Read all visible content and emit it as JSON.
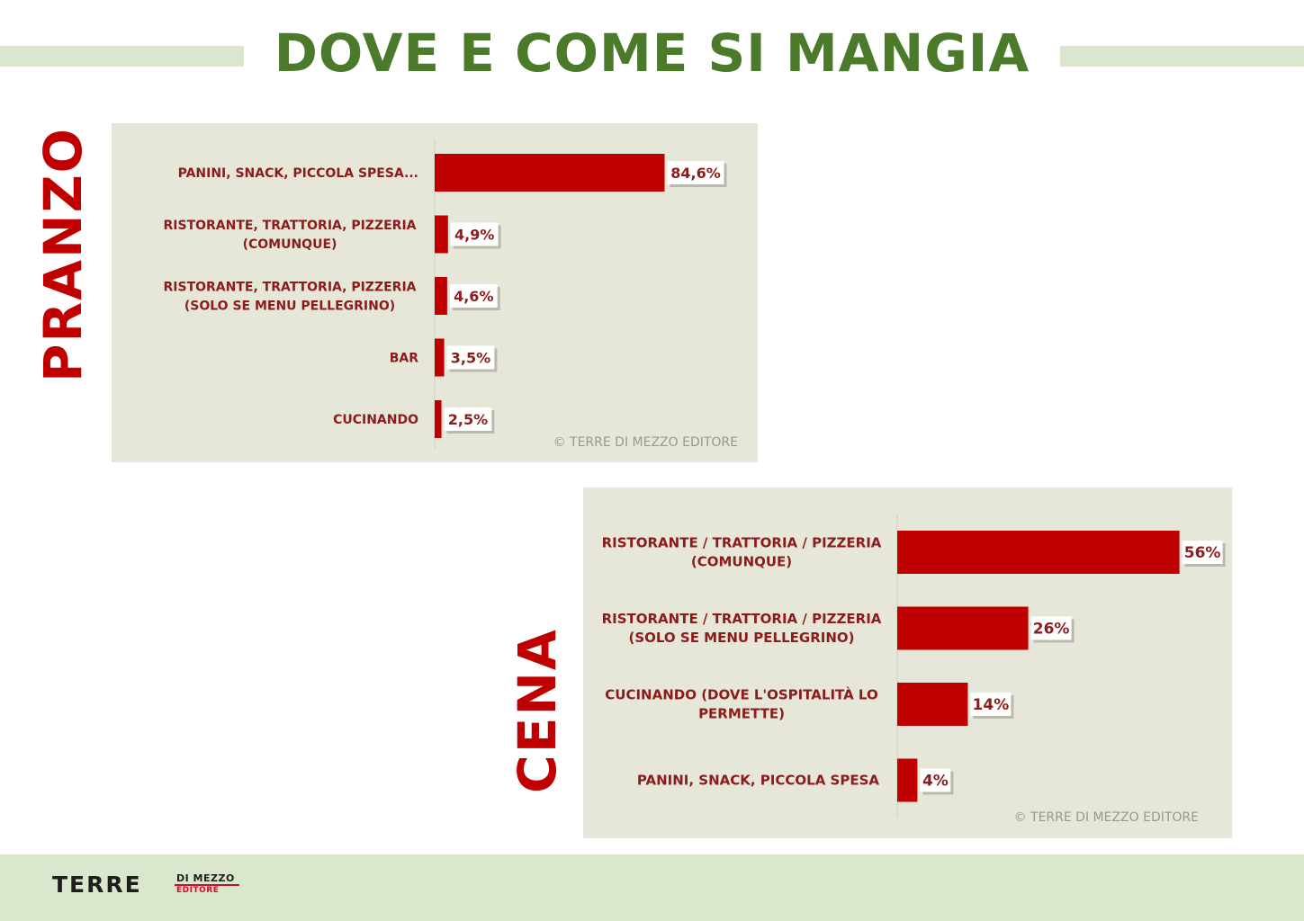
{
  "title": "DOVE E COME SI MANGIA",
  "colors": {
    "accent_green": "#4a7a2a",
    "band_green": "#dbe7cc",
    "bar_red": "#c00000",
    "panel": "#e6e7d9"
  },
  "footer": {
    "logo_main": "TERRE",
    "logo_top": "DI MEZZO",
    "logo_bottom": "EDITORE"
  },
  "chart_data": [
    {
      "type": "bar",
      "orientation": "horizontal",
      "title": "PRANZO",
      "categories": [
        [
          "PANINI, SNACK, PICCOLA SPESA..."
        ],
        [
          "RISTORANTE, TRATTORIA, PIZZERIA",
          "(COMUNQUE)"
        ],
        [
          "RISTORANTE, TRATTORIA, PIZZERIA",
          "(SOLO SE MENU PELLEGRINO)"
        ],
        [
          "BAR"
        ],
        [
          "CUCINANDO"
        ]
      ],
      "values": [
        84.6,
        4.9,
        4.6,
        3.5,
        2.5
      ],
      "data_labels": [
        "84,6%",
        "4,9%",
        "4,6%",
        "3,5%",
        "2,5%"
      ],
      "source": "© TERRE DI MEZZO EDITORE"
    },
    {
      "type": "bar",
      "orientation": "horizontal",
      "title": "CENA",
      "categories": [
        [
          "RISTORANTE / TRATTORIA / PIZZERIA",
          "(COMUNQUE)"
        ],
        [
          "RISTORANTE / TRATTORIA / PIZZERIA",
          "(SOLO SE MENU PELLEGRINO)"
        ],
        [
          "CUCINANDO (DOVE L'OSPITALITÀ LO",
          "PERMETTE)"
        ],
        [
          "PANINI, SNACK, PICCOLA SPESA"
        ]
      ],
      "values": [
        56,
        26,
        14,
        4
      ],
      "data_labels": [
        "56%",
        "26%",
        "14%",
        "4%"
      ],
      "source": "© TERRE DI MEZZO EDITORE"
    }
  ]
}
